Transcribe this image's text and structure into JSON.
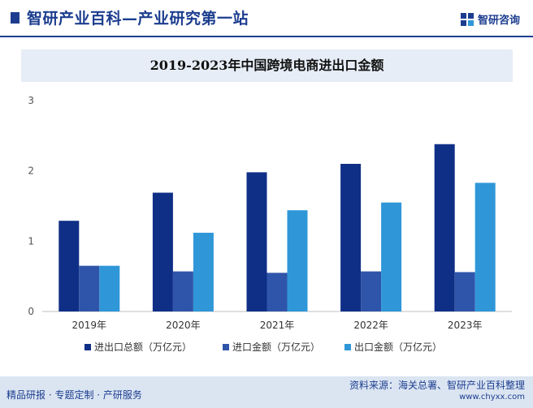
{
  "header": {
    "title": "智研产业百科—产业研究第一站",
    "brand": "智研咨询"
  },
  "colors": {
    "brand_navy": "#1c3d8f",
    "series": [
      "#0f2f87",
      "#2f55aa",
      "#2f97d8"
    ]
  },
  "chart_data": {
    "type": "bar",
    "title": "2019-2023年中国跨境电商进出口金额",
    "categories": [
      "2019年",
      "2020年",
      "2021年",
      "2022年",
      "2023年"
    ],
    "series": [
      {
        "name": "进出口总额（万亿元）",
        "values": [
          1.29,
          1.69,
          1.98,
          2.1,
          2.38
        ]
      },
      {
        "name": "进口金额（万亿元）",
        "values": [
          0.65,
          0.57,
          0.55,
          0.57,
          0.56
        ]
      },
      {
        "name": "出口金额（万亿元）",
        "values": [
          0.65,
          1.12,
          1.44,
          1.55,
          1.83
        ]
      }
    ],
    "ylim": [
      0,
      3
    ],
    "yticks": [
      "0",
      "1",
      "2",
      "3"
    ],
    "grid": false,
    "legend": "bottom"
  },
  "footer": {
    "left": "精品研报 · 专题定制 · 产研服务",
    "source": "资料来源：海关总署、智研产业百科整理",
    "url": "www.chyxx.com"
  }
}
